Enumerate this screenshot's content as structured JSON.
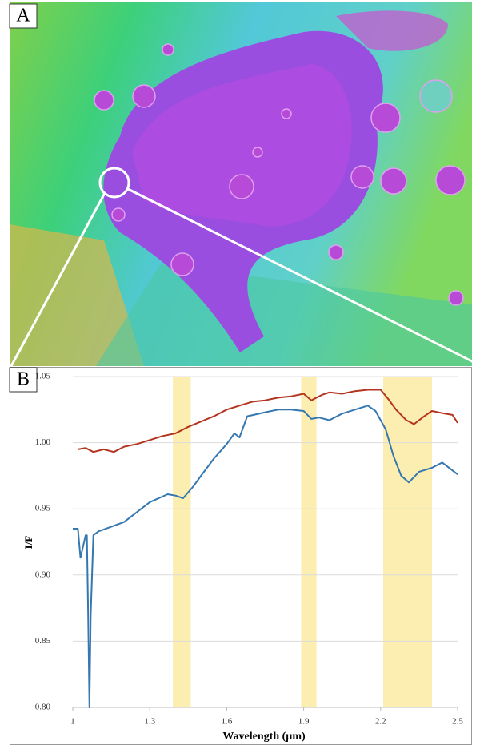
{
  "image_panel": {
    "label": "A"
  },
  "chart_data": {
    "type": "line",
    "panel_label": "B",
    "xlabel": "Wavelength (µm)",
    "ylabel": "I/F",
    "xlim": [
      1,
      2.5
    ],
    "xticks": [
      1,
      1.3,
      1.6,
      1.9,
      2.2,
      2.5
    ],
    "ylim": [
      0.8,
      1.05
    ],
    "yticks": [
      {
        "value": 0.8,
        "label": "0.80"
      },
      0.85,
      {
        "value": 0.9,
        "label": "0.90"
      },
      0.95,
      {
        "value": 1,
        "label": "1.00"
      },
      1.05
    ],
    "grid": true,
    "highlight_color": "#fbeeb0",
    "highlight_bands": [
      [
        1.39,
        1.46
      ],
      [
        1.89,
        1.95
      ],
      [
        2.21,
        2.4
      ]
    ],
    "series": [
      {
        "color": "#b3341f",
        "x": [
          1.02,
          1.05,
          1.08,
          1.12,
          1.16,
          1.2,
          1.25,
          1.3,
          1.35,
          1.4,
          1.45,
          1.5,
          1.55,
          1.6,
          1.65,
          1.7,
          1.75,
          1.8,
          1.85,
          1.9,
          1.93,
          1.97,
          2.0,
          2.05,
          2.1,
          2.15,
          2.2,
          2.23,
          2.26,
          2.3,
          2.33,
          2.37,
          2.4,
          2.45,
          2.48,
          2.5
        ],
        "values": [
          0.995,
          0.996,
          0.993,
          0.995,
          0.993,
          0.997,
          0.999,
          1.002,
          1.005,
          1.007,
          1.012,
          1.016,
          1.02,
          1.025,
          1.028,
          1.031,
          1.032,
          1.034,
          1.035,
          1.037,
          1.032,
          1.036,
          1.038,
          1.037,
          1.039,
          1.04,
          1.04,
          1.033,
          1.025,
          1.017,
          1.014,
          1.02,
          1.024,
          1.022,
          1.021,
          1.015
        ]
      },
      {
        "color": "#3577b0",
        "x": [
          1.0,
          1.02,
          1.03,
          1.05,
          1.055,
          1.06,
          1.065,
          1.07,
          1.08,
          1.1,
          1.2,
          1.3,
          1.37,
          1.4,
          1.43,
          1.47,
          1.5,
          1.55,
          1.6,
          1.63,
          1.65,
          1.68,
          1.75,
          1.8,
          1.85,
          1.9,
          1.93,
          1.96,
          2.0,
          2.05,
          2.1,
          2.15,
          2.18,
          2.22,
          2.25,
          2.28,
          2.31,
          2.35,
          2.4,
          2.44,
          2.5
        ],
        "values": [
          0.935,
          0.935,
          0.913,
          0.93,
          0.93,
          0.87,
          0.8,
          0.87,
          0.93,
          0.933,
          0.94,
          0.955,
          0.961,
          0.96,
          0.958,
          0.967,
          0.975,
          0.988,
          0.999,
          1.007,
          1.004,
          1.02,
          1.023,
          1.025,
          1.025,
          1.024,
          1.018,
          1.019,
          1.017,
          1.022,
          1.025,
          1.028,
          1.024,
          1.01,
          0.99,
          0.975,
          0.97,
          0.978,
          0.981,
          0.985,
          0.976
        ]
      }
    ]
  }
}
